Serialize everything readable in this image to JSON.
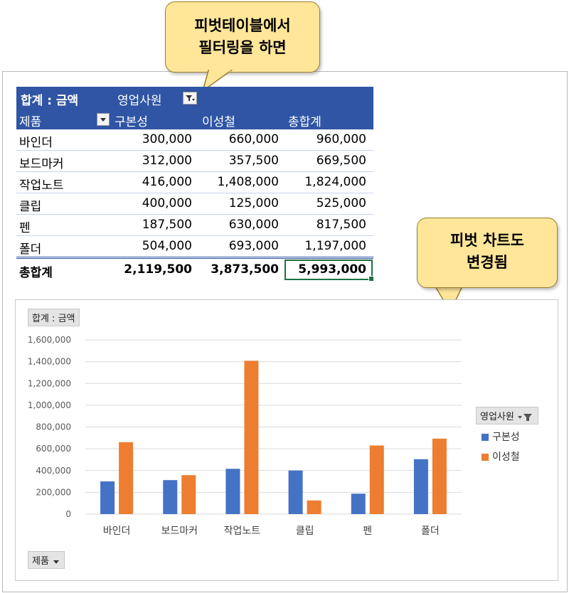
{
  "callouts": {
    "top": {
      "line1": "피벗테이블에서",
      "line2": "필터링을 하면"
    },
    "right": {
      "line1": "피벗 차트도",
      "line2": "변경됨"
    }
  },
  "pivot": {
    "value_label": "합계 : 금액",
    "column_field": "영업사원",
    "row_field": "제품",
    "col_headers": [
      "구본성",
      "이성철",
      "총합계"
    ],
    "rows": [
      {
        "label": "바인더",
        "values": [
          "300,000",
          "660,000",
          "960,000"
        ]
      },
      {
        "label": "보드마커",
        "values": [
          "312,000",
          "357,500",
          "669,500"
        ]
      },
      {
        "label": "작업노트",
        "values": [
          "416,000",
          "1,408,000",
          "1,824,000"
        ]
      },
      {
        "label": "클립",
        "values": [
          "400,000",
          "125,000",
          "525,000"
        ]
      },
      {
        "label": "펜",
        "values": [
          "187,500",
          "630,000",
          "817,500"
        ]
      },
      {
        "label": "폴더",
        "values": [
          "504,000",
          "693,000",
          "1,197,000"
        ]
      }
    ],
    "total": {
      "label": "총합계",
      "values": [
        "2,119,500",
        "3,873,500",
        "5,993,000"
      ]
    }
  },
  "chart_field_buttons": {
    "value": "합계 : 금액",
    "legend": "영업사원",
    "axis": "제품"
  },
  "colors": {
    "header_blue": "#2f55a4",
    "series_blue": "#4472c4",
    "series_orange": "#ed7d31",
    "callout_fill": "#ffe699"
  },
  "chart_data": {
    "type": "bar",
    "categories": [
      "바인더",
      "보드마커",
      "작업노트",
      "클립",
      "펜",
      "폴더"
    ],
    "series": [
      {
        "name": "구본성",
        "values": [
          300000,
          312000,
          416000,
          400000,
          187500,
          504000
        ],
        "color": "#4472c4"
      },
      {
        "name": "이성철",
        "values": [
          660000,
          357500,
          1408000,
          125000,
          630000,
          693000
        ],
        "color": "#ed7d31"
      }
    ],
    "ylim": [
      0,
      1600000
    ],
    "yticks": [
      "0",
      "200,000",
      "400,000",
      "600,000",
      "800,000",
      "1,000,000",
      "1,200,000",
      "1,400,000",
      "1,600,000"
    ],
    "legend_position": "right",
    "grid": true
  }
}
